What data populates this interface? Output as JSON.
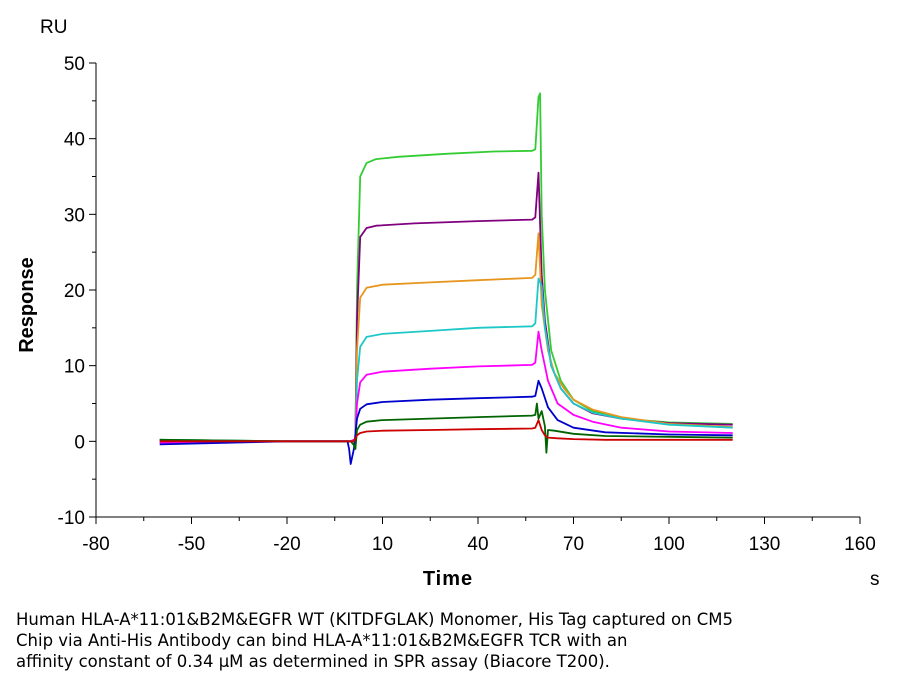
{
  "chart_data": {
    "type": "line",
    "title": "",
    "xlabel": "Time",
    "ylabel": "Response",
    "x_unit": "s",
    "y_unit": "RU",
    "xlim": [
      -80,
      160
    ],
    "ylim": [
      -10,
      50
    ],
    "x_ticks": [
      "-80",
      "-50",
      "-20",
      "10",
      "40",
      "70",
      "100",
      "130",
      "160"
    ],
    "y_ticks": [
      "-10",
      "0",
      "10",
      "20",
      "30",
      "40",
      "50"
    ],
    "grid": false,
    "legend": "none",
    "series": [
      {
        "color": "#33cc33",
        "points": [
          [
            -60,
            0.2
          ],
          [
            -20,
            0
          ],
          [
            0,
            0
          ],
          [
            1.5,
            0.3
          ],
          [
            2,
            20
          ],
          [
            3,
            35
          ],
          [
            5,
            36.8
          ],
          [
            8,
            37.3
          ],
          [
            15,
            37.6
          ],
          [
            30,
            38
          ],
          [
            45,
            38.3
          ],
          [
            57,
            38.4
          ],
          [
            58,
            38.6
          ],
          [
            59,
            45.5
          ],
          [
            59.5,
            46
          ],
          [
            60,
            30
          ],
          [
            61,
            20
          ],
          [
            63,
            12
          ],
          [
            66,
            8
          ],
          [
            70,
            5.5
          ],
          [
            76,
            4
          ],
          [
            85,
            3
          ],
          [
            100,
            2.5
          ],
          [
            120,
            2.3
          ]
        ]
      },
      {
        "color": "#800080",
        "points": [
          [
            -60,
            0.1
          ],
          [
            -20,
            0
          ],
          [
            0,
            0
          ],
          [
            1.5,
            0.3
          ],
          [
            2,
            16
          ],
          [
            3,
            27
          ],
          [
            5,
            28.2
          ],
          [
            8,
            28.5
          ],
          [
            20,
            28.8
          ],
          [
            40,
            29.1
          ],
          [
            57,
            29.3
          ],
          [
            58,
            29.6
          ],
          [
            59,
            35.5
          ],
          [
            60,
            22
          ],
          [
            61,
            16
          ],
          [
            63,
            10
          ],
          [
            66,
            7
          ],
          [
            70,
            5
          ],
          [
            76,
            3.7
          ],
          [
            85,
            3
          ],
          [
            100,
            2.4
          ],
          [
            120,
            2.2
          ]
        ]
      },
      {
        "color": "#e6961e",
        "points": [
          [
            -60,
            -0.1
          ],
          [
            -20,
            0
          ],
          [
            0,
            0
          ],
          [
            1.5,
            0.3
          ],
          [
            2,
            12
          ],
          [
            3,
            19
          ],
          [
            5,
            20.3
          ],
          [
            10,
            20.7
          ],
          [
            25,
            21
          ],
          [
            40,
            21.3
          ],
          [
            57,
            21.6
          ],
          [
            58,
            22
          ],
          [
            59,
            27.5
          ],
          [
            60,
            18
          ],
          [
            62,
            12
          ],
          [
            64,
            9
          ],
          [
            67,
            7
          ],
          [
            70,
            5.5
          ],
          [
            76,
            4.2
          ],
          [
            85,
            3.2
          ],
          [
            100,
            2.3
          ],
          [
            120,
            1.9
          ]
        ]
      },
      {
        "color": "#1ec8c8",
        "points": [
          [
            -60,
            0.2
          ],
          [
            -20,
            0
          ],
          [
            0,
            0
          ],
          [
            1.5,
            0.3
          ],
          [
            2,
            8
          ],
          [
            3,
            12.5
          ],
          [
            5,
            13.8
          ],
          [
            10,
            14.2
          ],
          [
            25,
            14.6
          ],
          [
            40,
            15
          ],
          [
            57,
            15.2
          ],
          [
            58,
            15.6
          ],
          [
            59,
            21.5
          ],
          [
            60,
            20.5
          ],
          [
            61,
            15
          ],
          [
            63,
            10
          ],
          [
            66,
            7
          ],
          [
            70,
            5
          ],
          [
            76,
            3.8
          ],
          [
            85,
            3
          ],
          [
            100,
            2.2
          ],
          [
            120,
            1.8
          ]
        ]
      },
      {
        "color": "#ff00ff",
        "points": [
          [
            -60,
            -0.2
          ],
          [
            -20,
            0
          ],
          [
            0,
            0
          ],
          [
            1.5,
            0.3
          ],
          [
            2,
            5
          ],
          [
            3,
            7.8
          ],
          [
            5,
            8.8
          ],
          [
            10,
            9.2
          ],
          [
            25,
            9.6
          ],
          [
            40,
            9.9
          ],
          [
            57,
            10.1
          ],
          [
            58,
            10.4
          ],
          [
            59,
            14.5
          ],
          [
            60,
            12
          ],
          [
            62,
            8
          ],
          [
            65,
            5
          ],
          [
            70,
            3.5
          ],
          [
            76,
            2.6
          ],
          [
            85,
            1.8
          ],
          [
            100,
            1.3
          ],
          [
            120,
            1.1
          ]
        ]
      },
      {
        "color": "#0000cc",
        "points": [
          [
            -60,
            -0.4
          ],
          [
            -20,
            0
          ],
          [
            -1,
            0
          ],
          [
            -0.5,
            -1
          ],
          [
            0,
            -3
          ],
          [
            1,
            -1
          ],
          [
            2,
            3
          ],
          [
            3,
            4.3
          ],
          [
            5,
            4.9
          ],
          [
            10,
            5.2
          ],
          [
            25,
            5.5
          ],
          [
            40,
            5.7
          ],
          [
            57,
            5.9
          ],
          [
            58,
            6
          ],
          [
            59,
            8
          ],
          [
            60,
            7
          ],
          [
            62,
            4.5
          ],
          [
            65,
            2.8
          ],
          [
            70,
            1.8
          ],
          [
            80,
            1.2
          ],
          [
            100,
            0.9
          ],
          [
            120,
            0.8
          ]
        ]
      },
      {
        "color": "#006400",
        "points": [
          [
            -60,
            0.2
          ],
          [
            -20,
            0
          ],
          [
            0,
            0
          ],
          [
            1,
            -0.5
          ],
          [
            1.5,
            -1
          ],
          [
            2,
            1.5
          ],
          [
            3,
            2.2
          ],
          [
            5,
            2.6
          ],
          [
            10,
            2.8
          ],
          [
            25,
            3
          ],
          [
            40,
            3.2
          ],
          [
            57,
            3.4
          ],
          [
            58,
            3.5
          ],
          [
            58.5,
            5
          ],
          [
            59,
            3
          ],
          [
            60,
            4
          ],
          [
            61,
            2
          ],
          [
            61.5,
            -1.5
          ],
          [
            62,
            1.5
          ],
          [
            64,
            1.4
          ],
          [
            70,
            1
          ],
          [
            80,
            0.7
          ],
          [
            100,
            0.6
          ],
          [
            120,
            0.5
          ]
        ]
      },
      {
        "color": "#cc0000",
        "points": [
          [
            -60,
            0
          ],
          [
            -20,
            0
          ],
          [
            0,
            0
          ],
          [
            1,
            0
          ],
          [
            2,
            0.8
          ],
          [
            3,
            1.1
          ],
          [
            5,
            1.3
          ],
          [
            10,
            1.4
          ],
          [
            25,
            1.5
          ],
          [
            40,
            1.6
          ],
          [
            57,
            1.7
          ],
          [
            58,
            1.8
          ],
          [
            59,
            2.8
          ],
          [
            60,
            1.5
          ],
          [
            61,
            0.8
          ],
          [
            62,
            0.5
          ],
          [
            65,
            0.4
          ],
          [
            70,
            0.3
          ],
          [
            80,
            0.2
          ],
          [
            100,
            0.2
          ],
          [
            120,
            0.2
          ]
        ]
      }
    ]
  },
  "caption": {
    "line1": "Human HLA-A*11:01&B2M&EGFR WT (KITDFGLAK) Monomer, His Tag captured on CM5",
    "line2": "Chip via Anti-His Antibody can bind HLA-A*11:01&B2M&EGFR TCR with an",
    "line3": "affinity constant of 0.34 μM as determined in SPR assay (Biacore T200)."
  }
}
